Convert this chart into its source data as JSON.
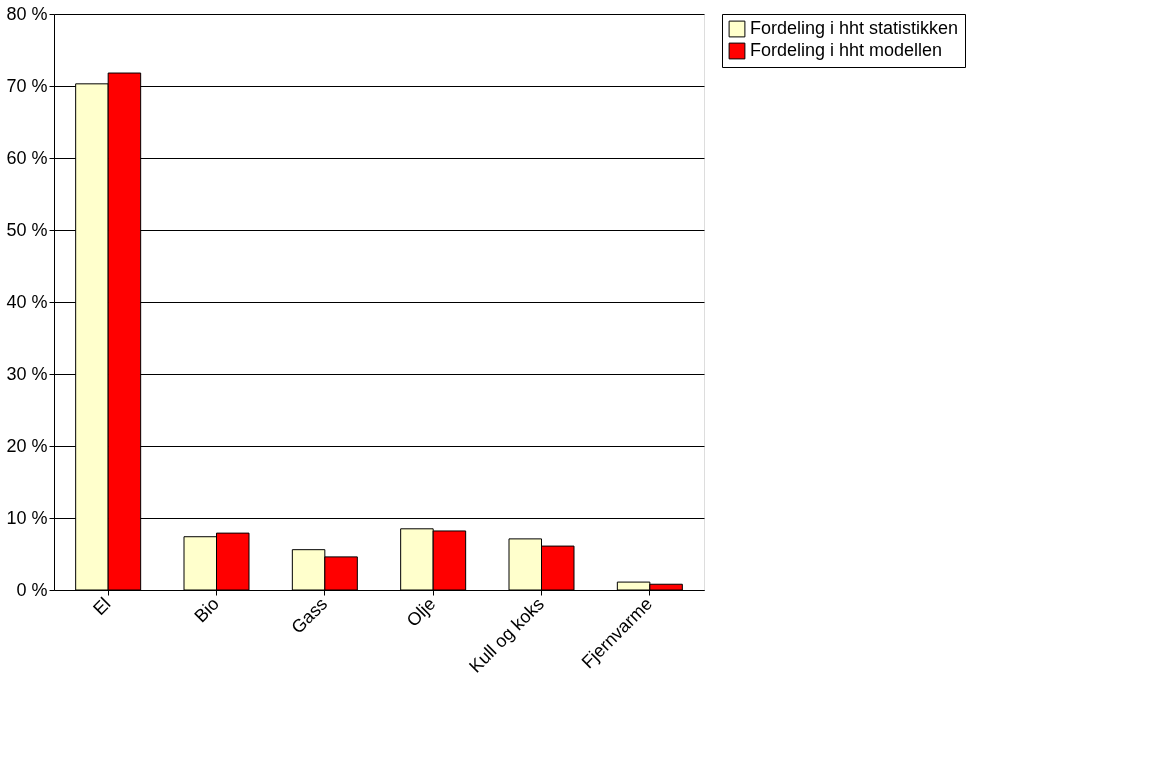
{
  "chart_data": {
    "type": "bar",
    "categories": [
      "El",
      "Bio",
      "Gass",
      "Olje",
      "Kull og koks",
      "Fjernvarme"
    ],
    "series": [
      {
        "name": "Fordeling i hht statistikken",
        "color": "#ffffcc",
        "values": [
          70.3,
          7.4,
          5.6,
          8.5,
          7.1,
          1.1
        ]
      },
      {
        "name": "Fordeling i hht modellen",
        "color": "#ff0000",
        "values": [
          71.8,
          7.9,
          4.6,
          8.2,
          6.1,
          0.8
        ]
      }
    ],
    "ylim": [
      0,
      80
    ],
    "yticks": [
      {
        "value": 0,
        "label": "0 %"
      },
      {
        "value": 10,
        "label": "10 %"
      },
      {
        "value": 20,
        "label": "20 %"
      },
      {
        "value": 30,
        "label": "30 %"
      },
      {
        "value": 40,
        "label": "40 %"
      },
      {
        "value": 50,
        "label": "50 %"
      },
      {
        "value": 60,
        "label": "60 %"
      },
      {
        "value": 70,
        "label": "70 %"
      },
      {
        "value": 80,
        "label": "80 %"
      }
    ],
    "grid": "y",
    "legend": "right"
  }
}
